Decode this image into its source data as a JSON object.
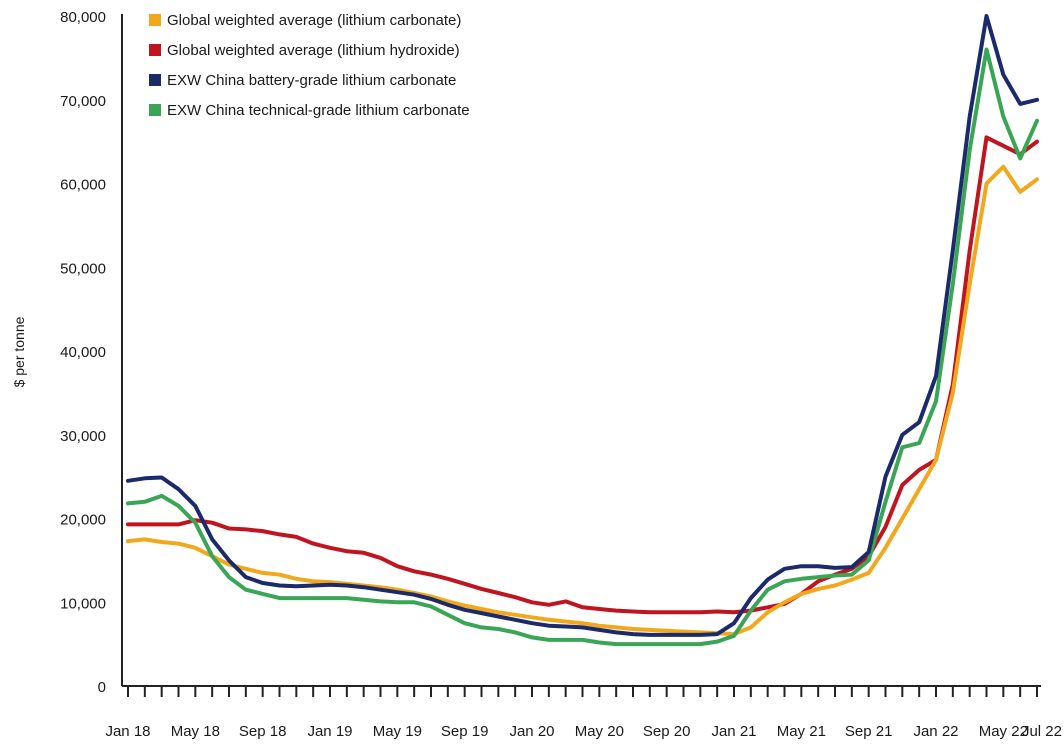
{
  "chart_data": {
    "type": "line",
    "ylabel": "$ per tonne",
    "xlabel": "",
    "ylim": [
      0,
      80000
    ],
    "y_ticks": [
      0,
      10000,
      20000,
      30000,
      40000,
      50000,
      60000,
      70000,
      80000
    ],
    "y_tick_labels": [
      "0",
      "10,000",
      "20,000",
      "30,000",
      "40,000",
      "50,000",
      "60,000",
      "70,000",
      "80,000"
    ],
    "x_tick_labels": [
      "Jan 18",
      "May 18",
      "Sep 18",
      "Jan 19",
      "May 19",
      "Sep 19",
      "Jan 20",
      "May 20",
      "Sep 20",
      "Jan 21",
      "May 21",
      "Sep 21",
      "Jan 22",
      "May 22",
      "Jul 22"
    ],
    "x_tick_dates": [
      "2018-01",
      "2018-05",
      "2018-09",
      "2019-01",
      "2019-05",
      "2019-09",
      "2020-01",
      "2020-05",
      "2020-09",
      "2021-01",
      "2021-05",
      "2021-09",
      "2022-01",
      "2022-05",
      "2022-07"
    ],
    "legend_position": "top-left",
    "grid": false,
    "series": [
      {
        "name": "Global weighted average (lithium carbonate)",
        "color": "#f2a81d",
        "points": [
          [
            "2018-01",
            17300
          ],
          [
            "2018-02",
            17500
          ],
          [
            "2018-03",
            17200
          ],
          [
            "2018-04",
            17000
          ],
          [
            "2018-05",
            16500
          ],
          [
            "2018-06",
            15500
          ],
          [
            "2018-07",
            14500
          ],
          [
            "2018-08",
            14000
          ],
          [
            "2018-09",
            13500
          ],
          [
            "2018-10",
            13300
          ],
          [
            "2018-11",
            12800
          ],
          [
            "2018-12",
            12500
          ],
          [
            "2019-01",
            12400
          ],
          [
            "2019-02",
            12200
          ],
          [
            "2019-03",
            12000
          ],
          [
            "2019-04",
            11800
          ],
          [
            "2019-05",
            11500
          ],
          [
            "2019-06",
            11100
          ],
          [
            "2019-07",
            10700
          ],
          [
            "2019-08",
            10100
          ],
          [
            "2019-09",
            9600
          ],
          [
            "2019-10",
            9200
          ],
          [
            "2019-11",
            8800
          ],
          [
            "2019-12",
            8500
          ],
          [
            "2020-01",
            8200
          ],
          [
            "2020-02",
            7900
          ],
          [
            "2020-03",
            7700
          ],
          [
            "2020-04",
            7500
          ],
          [
            "2020-05",
            7200
          ],
          [
            "2020-06",
            7000
          ],
          [
            "2020-07",
            6800
          ],
          [
            "2020-08",
            6700
          ],
          [
            "2020-09",
            6600
          ],
          [
            "2020-10",
            6500
          ],
          [
            "2020-11",
            6400
          ],
          [
            "2020-12",
            6300
          ],
          [
            "2021-01",
            6200
          ],
          [
            "2021-02",
            7000
          ],
          [
            "2021-03",
            8800
          ],
          [
            "2021-04",
            10000
          ],
          [
            "2021-05",
            11000
          ],
          [
            "2021-06",
            11600
          ],
          [
            "2021-07",
            12000
          ],
          [
            "2021-08",
            12700
          ],
          [
            "2021-09",
            13500
          ],
          [
            "2021-10",
            16500
          ],
          [
            "2021-11",
            20000
          ],
          [
            "2021-12",
            23500
          ],
          [
            "2022-01",
            27000
          ],
          [
            "2022-02",
            35000
          ],
          [
            "2022-03",
            48000
          ],
          [
            "2022-04",
            60000
          ],
          [
            "2022-05",
            62000
          ],
          [
            "2022-06",
            59000
          ],
          [
            "2022-07",
            60500
          ]
        ]
      },
      {
        "name": "Global weighted average (lithium hydroxide)",
        "color": "#c0141f",
        "points": [
          [
            "2018-01",
            19300
          ],
          [
            "2018-02",
            19300
          ],
          [
            "2018-03",
            19300
          ],
          [
            "2018-04",
            19300
          ],
          [
            "2018-05",
            19800
          ],
          [
            "2018-06",
            19500
          ],
          [
            "2018-07",
            18800
          ],
          [
            "2018-08",
            18700
          ],
          [
            "2018-09",
            18500
          ],
          [
            "2018-10",
            18100
          ],
          [
            "2018-11",
            17800
          ],
          [
            "2018-12",
            17000
          ],
          [
            "2019-01",
            16500
          ],
          [
            "2019-02",
            16100
          ],
          [
            "2019-03",
            15900
          ],
          [
            "2019-04",
            15300
          ],
          [
            "2019-05",
            14300
          ],
          [
            "2019-06",
            13700
          ],
          [
            "2019-07",
            13300
          ],
          [
            "2019-08",
            12800
          ],
          [
            "2019-09",
            12200
          ],
          [
            "2019-10",
            11600
          ],
          [
            "2019-11",
            11100
          ],
          [
            "2019-12",
            10600
          ],
          [
            "2020-01",
            10000
          ],
          [
            "2020-02",
            9700
          ],
          [
            "2020-03",
            10100
          ],
          [
            "2020-04",
            9400
          ],
          [
            "2020-05",
            9200
          ],
          [
            "2020-06",
            9000
          ],
          [
            "2020-07",
            8900
          ],
          [
            "2020-08",
            8800
          ],
          [
            "2020-09",
            8800
          ],
          [
            "2020-10",
            8800
          ],
          [
            "2020-11",
            8800
          ],
          [
            "2020-12",
            8900
          ],
          [
            "2021-01",
            8800
          ],
          [
            "2021-02",
            9000
          ],
          [
            "2021-03",
            9400
          ],
          [
            "2021-04",
            9800
          ],
          [
            "2021-05",
            11000
          ],
          [
            "2021-06",
            12500
          ],
          [
            "2021-07",
            13300
          ],
          [
            "2021-08",
            14000
          ],
          [
            "2021-09",
            15500
          ],
          [
            "2021-10",
            19000
          ],
          [
            "2021-11",
            24000
          ],
          [
            "2021-12",
            25800
          ],
          [
            "2022-01",
            27000
          ],
          [
            "2022-02",
            36000
          ],
          [
            "2022-03",
            52000
          ],
          [
            "2022-04",
            65500
          ],
          [
            "2022-05",
            64500
          ],
          [
            "2022-06",
            63500
          ],
          [
            "2022-07",
            65000
          ]
        ]
      },
      {
        "name": "EXW China battery-grade lithium carbonate",
        "color": "#1b2a6b",
        "points": [
          [
            "2018-01",
            24500
          ],
          [
            "2018-02",
            24800
          ],
          [
            "2018-03",
            24900
          ],
          [
            "2018-04",
            23500
          ],
          [
            "2018-05",
            21500
          ],
          [
            "2018-06",
            17500
          ],
          [
            "2018-07",
            15000
          ],
          [
            "2018-08",
            13000
          ],
          [
            "2018-09",
            12300
          ],
          [
            "2018-10",
            12000
          ],
          [
            "2018-11",
            11900
          ],
          [
            "2018-12",
            12000
          ],
          [
            "2019-01",
            12100
          ],
          [
            "2019-02",
            12000
          ],
          [
            "2019-03",
            11800
          ],
          [
            "2019-04",
            11500
          ],
          [
            "2019-05",
            11200
          ],
          [
            "2019-06",
            10900
          ],
          [
            "2019-07",
            10400
          ],
          [
            "2019-08",
            9700
          ],
          [
            "2019-09",
            9100
          ],
          [
            "2019-10",
            8700
          ],
          [
            "2019-11",
            8300
          ],
          [
            "2019-12",
            7900
          ],
          [
            "2020-01",
            7500
          ],
          [
            "2020-02",
            7200
          ],
          [
            "2020-03",
            7100
          ],
          [
            "2020-04",
            7000
          ],
          [
            "2020-05",
            6700
          ],
          [
            "2020-06",
            6400
          ],
          [
            "2020-07",
            6200
          ],
          [
            "2020-08",
            6100
          ],
          [
            "2020-09",
            6100
          ],
          [
            "2020-10",
            6100
          ],
          [
            "2020-11",
            6100
          ],
          [
            "2020-12",
            6200
          ],
          [
            "2021-01",
            7500
          ],
          [
            "2021-02",
            10500
          ],
          [
            "2021-03",
            12700
          ],
          [
            "2021-04",
            14000
          ],
          [
            "2021-05",
            14300
          ],
          [
            "2021-06",
            14300
          ],
          [
            "2021-07",
            14100
          ],
          [
            "2021-08",
            14200
          ],
          [
            "2021-09",
            16000
          ],
          [
            "2021-10",
            25000
          ],
          [
            "2021-11",
            30000
          ],
          [
            "2021-12",
            31500
          ],
          [
            "2022-01",
            37000
          ],
          [
            "2022-02",
            52000
          ],
          [
            "2022-03",
            68000
          ],
          [
            "2022-04",
            80000
          ],
          [
            "2022-05",
            73000
          ],
          [
            "2022-06",
            69500
          ],
          [
            "2022-07",
            70000
          ]
        ]
      },
      {
        "name": "EXW China technical-grade lithium carbonate",
        "color": "#3aa655",
        "points": [
          [
            "2018-01",
            21800
          ],
          [
            "2018-02",
            22000
          ],
          [
            "2018-03",
            22700
          ],
          [
            "2018-04",
            21500
          ],
          [
            "2018-05",
            19500
          ],
          [
            "2018-06",
            15500
          ],
          [
            "2018-07",
            13000
          ],
          [
            "2018-08",
            11500
          ],
          [
            "2018-09",
            11000
          ],
          [
            "2018-10",
            10500
          ],
          [
            "2018-11",
            10500
          ],
          [
            "2018-12",
            10500
          ],
          [
            "2019-01",
            10500
          ],
          [
            "2019-02",
            10500
          ],
          [
            "2019-03",
            10300
          ],
          [
            "2019-04",
            10100
          ],
          [
            "2019-05",
            10000
          ],
          [
            "2019-06",
            10000
          ],
          [
            "2019-07",
            9500
          ],
          [
            "2019-08",
            8500
          ],
          [
            "2019-09",
            7500
          ],
          [
            "2019-10",
            7000
          ],
          [
            "2019-11",
            6800
          ],
          [
            "2019-12",
            6400
          ],
          [
            "2020-01",
            5800
          ],
          [
            "2020-02",
            5500
          ],
          [
            "2020-03",
            5500
          ],
          [
            "2020-04",
            5500
          ],
          [
            "2020-05",
            5200
          ],
          [
            "2020-06",
            5000
          ],
          [
            "2020-07",
            5000
          ],
          [
            "2020-08",
            5000
          ],
          [
            "2020-09",
            5000
          ],
          [
            "2020-10",
            5000
          ],
          [
            "2020-11",
            5000
          ],
          [
            "2020-12",
            5300
          ],
          [
            "2021-01",
            6000
          ],
          [
            "2021-02",
            9000
          ],
          [
            "2021-03",
            11500
          ],
          [
            "2021-04",
            12500
          ],
          [
            "2021-05",
            12800
          ],
          [
            "2021-06",
            13000
          ],
          [
            "2021-07",
            13200
          ],
          [
            "2021-08",
            13300
          ],
          [
            "2021-09",
            15000
          ],
          [
            "2021-10",
            22000
          ],
          [
            "2021-11",
            28500
          ],
          [
            "2021-12",
            29000
          ],
          [
            "2022-01",
            34000
          ],
          [
            "2022-02",
            48000
          ],
          [
            "2022-03",
            64000
          ],
          [
            "2022-04",
            76000
          ],
          [
            "2022-05",
            68000
          ],
          [
            "2022-06",
            63000
          ],
          [
            "2022-07",
            67500
          ]
        ]
      }
    ]
  }
}
